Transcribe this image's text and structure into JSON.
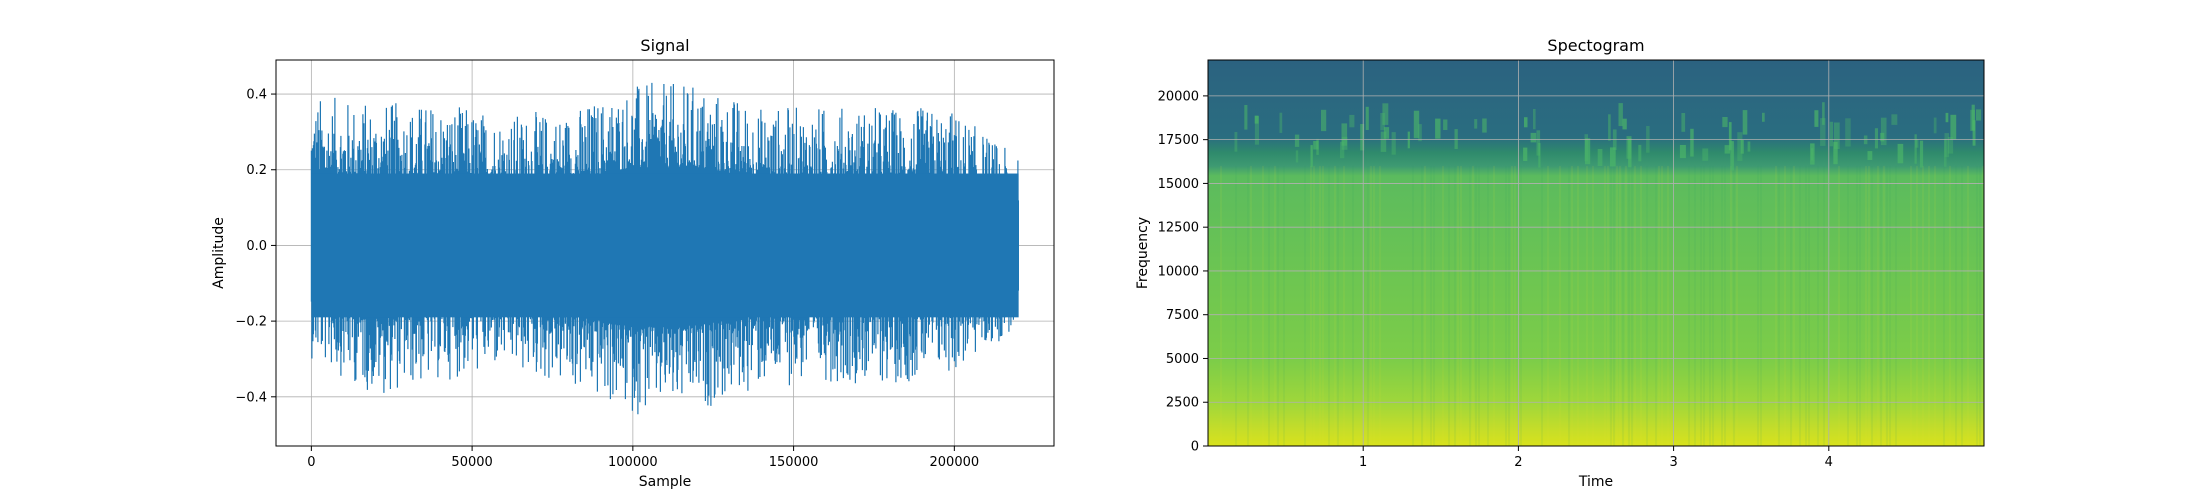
{
  "chart_data": [
    {
      "type": "line",
      "title": "Signal",
      "xlabel": "Sample",
      "ylabel": "Amplitude",
      "xlim": [
        -11000,
        231000
      ],
      "ylim": [
        -0.53,
        0.49
      ],
      "xticks": [
        0,
        50000,
        100000,
        150000,
        200000
      ],
      "xtick_labels": [
        "0",
        "50000",
        "100000",
        "150000",
        "200000"
      ],
      "yticks": [
        -0.4,
        -0.2,
        0.0,
        0.2,
        0.4
      ],
      "ytick_labels": [
        "−0.4",
        "−0.2",
        "0.0",
        "0.2",
        "0.4"
      ],
      "grid": true,
      "color": "#1f77b4",
      "series": [
        {
          "x": [
            0,
            20000,
            40000,
            60000,
            80000,
            100000,
            120000,
            140000,
            160000,
            180000,
            200000,
            220000
          ],
          "max": [
            0.4,
            0.38,
            0.38,
            0.35,
            0.36,
            0.43,
            0.43,
            0.37,
            0.37,
            0.37,
            0.36,
            0.23
          ],
          "min": [
            -0.3,
            -0.4,
            -0.36,
            -0.33,
            -0.38,
            -0.45,
            -0.44,
            -0.38,
            -0.36,
            -0.37,
            -0.34,
            -0.22
          ]
        }
      ]
    },
    {
      "type": "heatmap",
      "title": "Spectogram",
      "xlabel": "Time",
      "ylabel": "Frequency",
      "xlim": [
        0.0,
        5.0
      ],
      "ylim": [
        0,
        22050
      ],
      "xticks": [
        1,
        2,
        3,
        4
      ],
      "xtick_labels": [
        "1",
        "2",
        "3",
        "4"
      ],
      "yticks": [
        0,
        2500,
        5000,
        7500,
        10000,
        12500,
        15000,
        17500,
        20000
      ],
      "ytick_labels": [
        "0",
        "2500",
        "5000",
        "7500",
        "10000",
        "12500",
        "15000",
        "17500",
        "20000"
      ],
      "grid": true,
      "colormap": "viridis",
      "frequency_bands": [
        {
          "from": 0,
          "to": 1000,
          "level": 0.92
        },
        {
          "from": 1000,
          "to": 2500,
          "level": 0.85
        },
        {
          "from": 2500,
          "to": 5000,
          "level": 0.76
        },
        {
          "from": 5000,
          "to": 10000,
          "level": 0.7
        },
        {
          "from": 10000,
          "to": 16000,
          "level": 0.66
        },
        {
          "from": 16000,
          "to": 18500,
          "level": 0.55
        },
        {
          "from": 18500,
          "to": 22050,
          "level": 0.36
        }
      ]
    }
  ]
}
